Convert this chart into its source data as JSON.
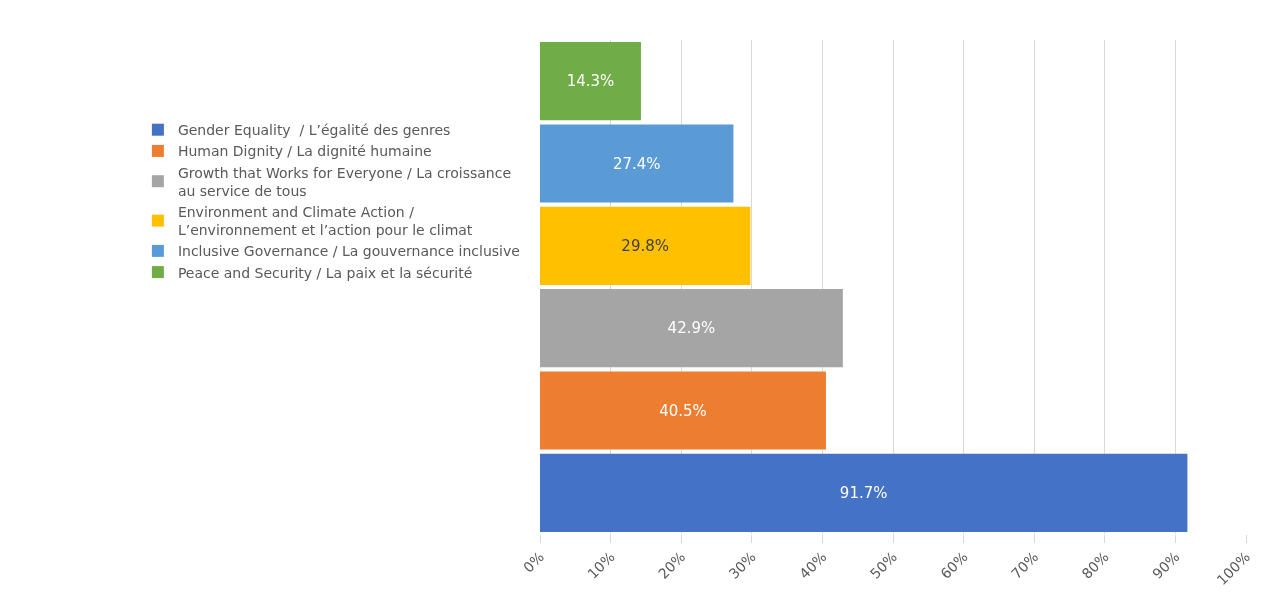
{
  "chart_data": {
    "type": "bar",
    "orientation": "horizontal",
    "categories": [
      null,
      null,
      null,
      null,
      null,
      null
    ],
    "series": [
      {
        "name": "Gender Equality  / L’égalité des genres",
        "color": "#4472c4",
        "values": [
          null,
          null,
          null,
          null,
          null,
          91.7
        ],
        "value_labels": [
          null,
          null,
          null,
          null,
          null,
          "91.7%"
        ]
      },
      {
        "name": "Human Dignity / La dignité humaine",
        "color": "#ed7d31",
        "values": [
          null,
          null,
          null,
          null,
          40.5,
          null
        ],
        "value_labels": [
          null,
          null,
          null,
          null,
          "40.5%",
          null
        ]
      },
      {
        "name": "Growth that Works for Everyone / La croissance au service de tous",
        "color": "#a5a5a5",
        "values": [
          null,
          null,
          null,
          42.9,
          null,
          null
        ],
        "value_labels": [
          null,
          null,
          null,
          "42.9%",
          null,
          null
        ]
      },
      {
        "name": "Environment and Climate Action / L’environnement et l’action pour le climat",
        "color": "#ffc000",
        "values": [
          null,
          null,
          29.8,
          null,
          null,
          null
        ],
        "value_labels": [
          null,
          null,
          "29.8%",
          null,
          null,
          null
        ]
      },
      {
        "name": "Inclusive Governance / La gouvernance inclusive",
        "color": "#5b9bd5",
        "values": [
          null,
          27.4,
          null,
          null,
          null,
          null
        ],
        "value_labels": [
          null,
          "27.4%",
          null,
          null,
          null,
          null
        ]
      },
      {
        "name": "Peace and Security / La paix et la sécurité",
        "color": "#70ad47",
        "values": [
          14.3,
          null,
          null,
          null,
          null,
          null
        ],
        "value_labels": [
          "14.3%",
          null,
          null,
          null,
          null,
          null
        ]
      }
    ],
    "xlim": [
      0,
      100
    ],
    "xticks": [
      {
        "value": 0,
        "label": "0%"
      },
      {
        "value": 10,
        "label": "10%"
      },
      {
        "value": 20,
        "label": "20%"
      },
      {
        "value": 30,
        "label": "30%"
      },
      {
        "value": 40,
        "label": "40%"
      },
      {
        "value": 50,
        "label": "50%"
      },
      {
        "value": 60,
        "label": "60%"
      },
      {
        "value": 70,
        "label": "70%"
      },
      {
        "value": 80,
        "label": "80%"
      },
      {
        "value": 90,
        "label": "90%"
      },
      {
        "value": 100,
        "label": "100%"
      }
    ],
    "tick_labels": "x",
    "grid": "x",
    "legend": "left"
  }
}
